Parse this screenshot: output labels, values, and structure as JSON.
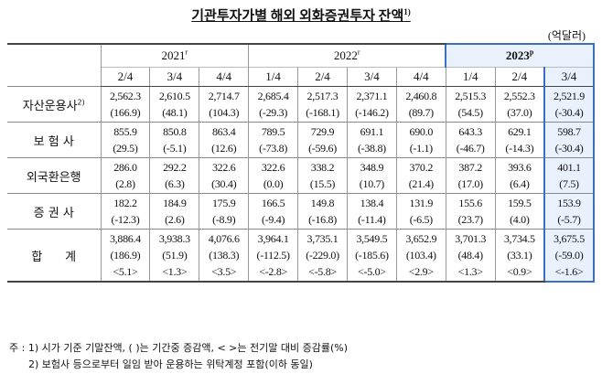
{
  "title": "기관투자가별 해외 외화증권투자 잔액",
  "title_note": "1)",
  "unit": "(억달러)",
  "years": [
    {
      "year": "2021",
      "mark": "r",
      "quarters": [
        "2/4",
        "3/4",
        "4/4"
      ]
    },
    {
      "year": "2022",
      "mark": "r",
      "quarters": [
        "1/4",
        "2/4",
        "3/4",
        "4/4"
      ]
    },
    {
      "year": "2023",
      "mark": "p",
      "quarters": [
        "1/4",
        "2/4",
        "3/4"
      ]
    }
  ],
  "rows": [
    {
      "label": "자산운용사",
      "note": "2)",
      "lines": [
        [
          "2,562.3",
          "2,610.5",
          "2,714.7",
          "2,685.4",
          "2,517.3",
          "2,371.1",
          "2,460.8",
          "2,515.3",
          "2,552.3",
          "2,521.9"
        ],
        [
          "(166.9)",
          "(48.1)",
          "(104.3)",
          "(-29.3)",
          "(-168.1)",
          "(-146.2)",
          "(89.7)",
          "(54.5)",
          "(37.0)",
          "(-30.4)"
        ]
      ]
    },
    {
      "label": "보 험 사",
      "lines": [
        [
          "855.9",
          "850.8",
          "863.4",
          "789.5",
          "729.9",
          "691.1",
          "690.0",
          "643.3",
          "629.1",
          "598.7"
        ],
        [
          "(29.5)",
          "(-5.1)",
          "(12.6)",
          "(-73.8)",
          "(-59.6)",
          "(-38.8)",
          "(-1.1)",
          "(-46.7)",
          "(-14.3)",
          "(-30.4)"
        ]
      ]
    },
    {
      "label": "외국환은행",
      "lines": [
        [
          "286.0",
          "292.2",
          "322.6",
          "322.6",
          "338.2",
          "348.9",
          "370.2",
          "387.2",
          "393.6",
          "401.1"
        ],
        [
          "(2.8)",
          "(6.3)",
          "(30.4)",
          "(0.0)",
          "(15.5)",
          "(10.7)",
          "(21.4)",
          "(17.0)",
          "(6.4)",
          "(7.5)"
        ]
      ]
    },
    {
      "label": "증 권 사",
      "lines": [
        [
          "182.2",
          "184.9",
          "175.9",
          "166.5",
          "149.8",
          "138.4",
          "131.9",
          "155.6",
          "159.5",
          "153.9"
        ],
        [
          "(-12.3)",
          "(2.6)",
          "(-8.9)",
          "(-9.4)",
          "(-16.8)",
          "(-11.4)",
          "(-6.5)",
          "(23.7)",
          "(4.0)",
          "(-5.7)"
        ]
      ]
    },
    {
      "label": "합      계",
      "lines": [
        [
          "3,886.4",
          "3,938.3",
          "4,076.6",
          "3,964.1",
          "3,735.1",
          "3,549.5",
          "3,652.9",
          "3,701.3",
          "3,734.5",
          "3,675.5"
        ],
        [
          "(186.9)",
          "(51.9)",
          "(138.3)",
          "(-112.5)",
          "(-229.0)",
          "(-185.6)",
          "(103.4)",
          "(48.4)",
          "(33.1)",
          "(-59.0)"
        ],
        [
          "<5.1>",
          "<1.3>",
          "<3.5>",
          "<-2.8>",
          "<-5.8>",
          "<-5.0>",
          "<2.9>",
          "<1.3>",
          "<0.9>",
          "<-1.6>"
        ]
      ]
    }
  ],
  "notes": [
    "주 : 1) 시가 기준 기말잔액, (   )는 기간중 증감액, <   >는 전기말 대비 증감률(%)",
    "2) 보험사 등으로부터 일임 받아 운용하는 위탁계정 포함(이하 동일)"
  ]
}
